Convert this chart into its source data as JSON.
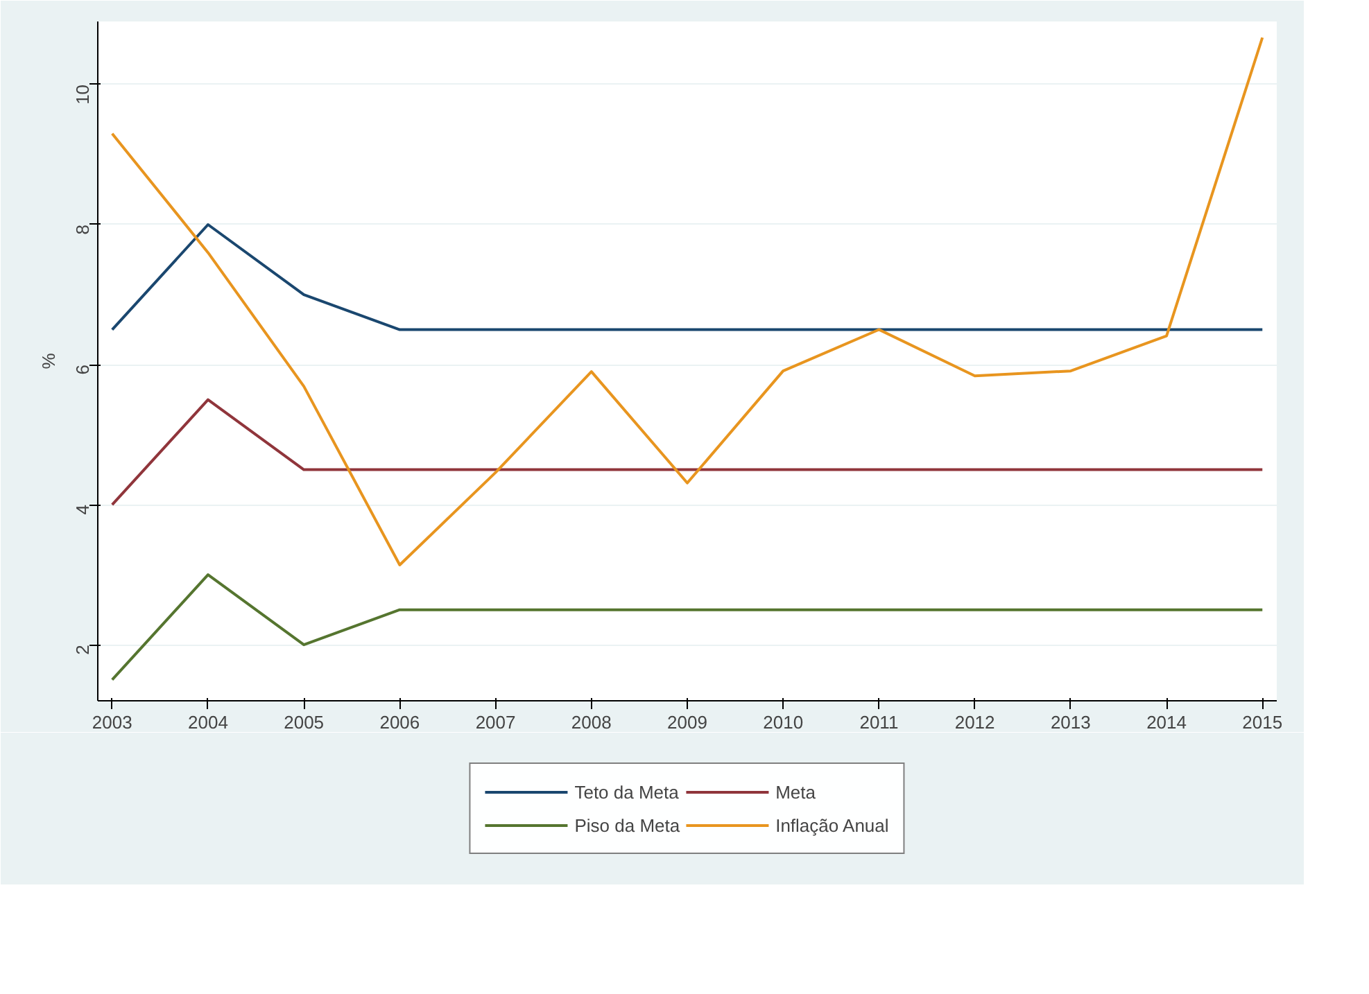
{
  "chart_data": {
    "type": "line",
    "ylabel": "%",
    "x": [
      2003,
      2004,
      2005,
      2006,
      2007,
      2008,
      2009,
      2010,
      2011,
      2012,
      2013,
      2014,
      2015
    ],
    "xlim": [
      2002.85,
      2015.15
    ],
    "xticks": [
      2003,
      2004,
      2005,
      2006,
      2007,
      2008,
      2009,
      2010,
      2011,
      2012,
      2013,
      2014,
      2015
    ],
    "ylim": [
      1.2,
      10.9
    ],
    "yticks": [
      2,
      4,
      6,
      8,
      10
    ],
    "grid": "y",
    "legend": "bottom",
    "line_style": "solid",
    "marker": "none",
    "series": [
      {
        "name": "Teto da Meta",
        "color": "#1a476f",
        "values": [
          6.5,
          8,
          7,
          6.5,
          6.5,
          6.5,
          6.5,
          6.5,
          6.5,
          6.5,
          6.5,
          6.5,
          6.5
        ]
      },
      {
        "name": "Meta",
        "color": "#90353b",
        "values": [
          4,
          5.5,
          4.5,
          4.5,
          4.5,
          4.5,
          4.5,
          4.5,
          4.5,
          4.5,
          4.5,
          4.5,
          4.5
        ]
      },
      {
        "name": "Piso da Meta",
        "color": "#55752f",
        "values": [
          1.5,
          3,
          2,
          2.5,
          2.5,
          2.5,
          2.5,
          2.5,
          2.5,
          2.5,
          2.5,
          2.5,
          2.5
        ]
      },
      {
        "name": "Inflação Anual",
        "color": "#e8951f",
        "values": [
          9.3,
          7.6,
          5.69,
          3.14,
          4.46,
          5.9,
          4.31,
          5.91,
          6.5,
          5.84,
          5.91,
          6.41,
          10.67
        ]
      }
    ]
  }
}
